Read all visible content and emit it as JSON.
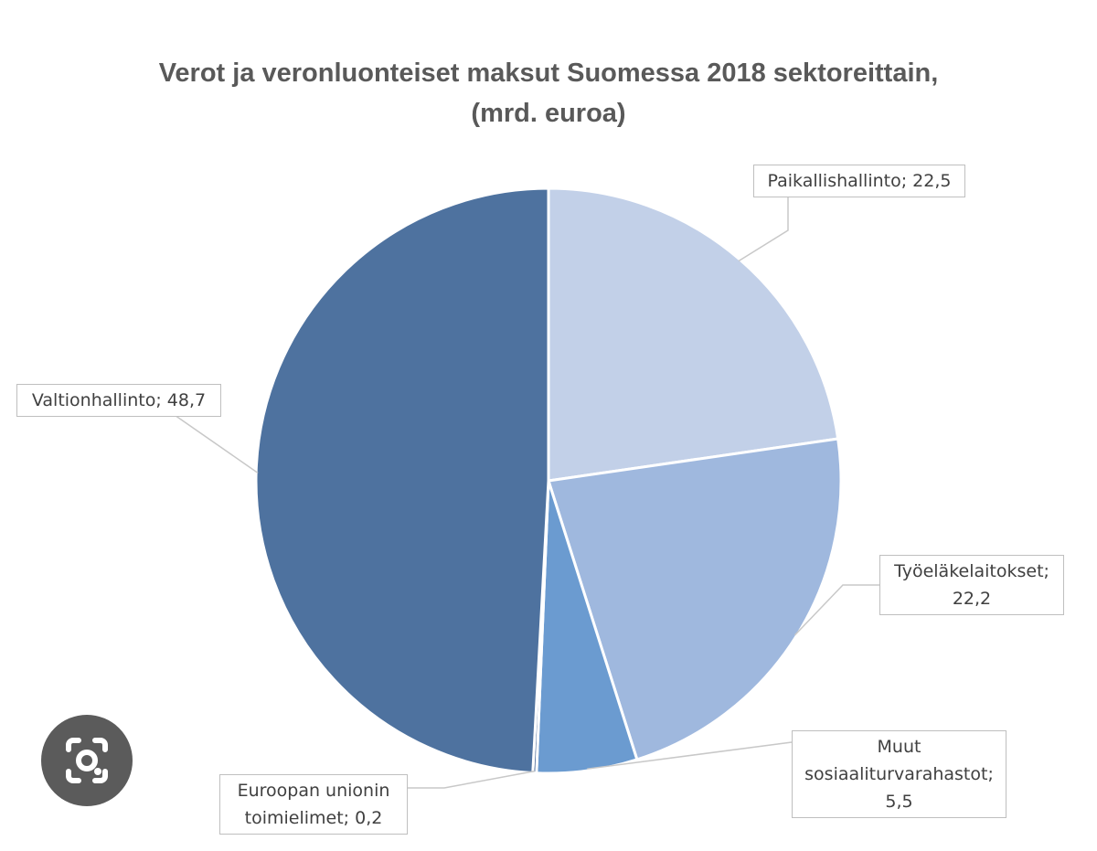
{
  "chart_data": {
    "type": "pie",
    "title": [
      "Verot ja veronluonteiset maksut Suomessa 2018 sektoreittain,",
      "(mrd. euroa)"
    ],
    "slices": [
      {
        "name": "Paikallishallinto",
        "value": 22.5,
        "color": "#c2d0e8",
        "label": [
          "Paikallishallinto; 22,5"
        ]
      },
      {
        "name": "Työeläkelaitokset",
        "value": 22.2,
        "color": "#9fb8de",
        "label": [
          "Työeläkelaitokset;",
          "22,2"
        ]
      },
      {
        "name": "Muut sosiaaliturvarahastot",
        "value": 5.5,
        "color": "#6b9bd0",
        "label": [
          "Muut",
          "sosiaaliturvarahastot;",
          "5,5"
        ]
      },
      {
        "name": "Euroopan unionin toimielimet",
        "value": 0.2,
        "color": "#4a6b9a",
        "label": [
          "Euroopan unionin",
          "toimielimet; 0,2"
        ]
      },
      {
        "name": "Valtionhallinto",
        "value": 48.7,
        "color": "#4e729f",
        "label": [
          "Valtionhallinto; 48,7"
        ]
      }
    ],
    "start_angle": "12 o'clock",
    "direction": "clockwise",
    "legend": "none"
  },
  "overlay": {
    "lens_icon": "camera-search-icon"
  }
}
